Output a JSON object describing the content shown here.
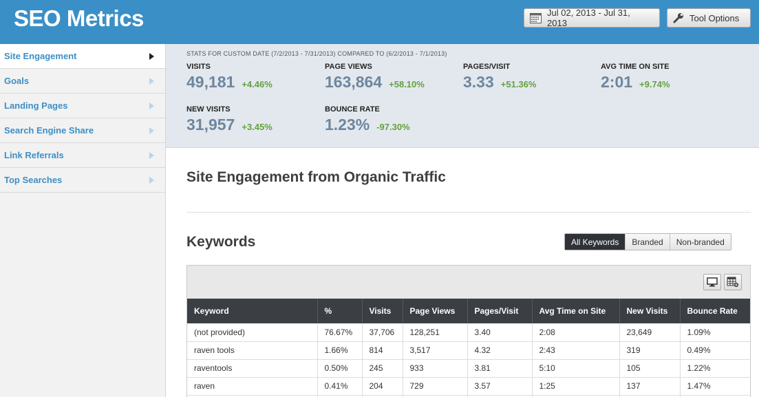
{
  "header": {
    "title": "SEO Metrics",
    "date_range": "Jul 02, 2013 - Jul 31, 2013",
    "tool_options": "Tool Options"
  },
  "sidebar": {
    "items": [
      {
        "label": "Site Engagement"
      },
      {
        "label": "Goals"
      },
      {
        "label": "Landing Pages"
      },
      {
        "label": "Search Engine Share"
      },
      {
        "label": "Link Referrals"
      },
      {
        "label": "Top Searches"
      }
    ]
  },
  "stats": {
    "caption": "STATS FOR CUSTOM DATE (7/2/2013 - 7/31/2013) COMPARED TO (6/2/2013 - 7/1/2013)",
    "visits": {
      "label": "VISITS",
      "value": "49,181",
      "change": "+4.46%"
    },
    "page_views": {
      "label": "PAGE VIEWS",
      "value": "163,864",
      "change": "+58.10%"
    },
    "pages_visit": {
      "label": "PAGES/VISIT",
      "value": "3.33",
      "change": "+51.36%"
    },
    "avg_time": {
      "label": "AVG TIME ON SITE",
      "value": "2:01",
      "change": "+9.74%"
    },
    "new_visits": {
      "label": "NEW VISITS",
      "value": "31,957",
      "change": "+3.45%"
    },
    "bounce_rate": {
      "label": "BOUNCE RATE",
      "value": "1.23%",
      "change": "-97.30%"
    }
  },
  "main": {
    "section_title": "Site Engagement from Organic Traffic",
    "keywords_title": "Keywords",
    "filters": [
      "All Keywords",
      "Branded",
      "Non-branded"
    ],
    "selected_filter": "All Keywords"
  },
  "table": {
    "columns": [
      "Keyword",
      "%",
      "Visits",
      "Page Views",
      "Pages/Visit",
      "Avg Time on Site",
      "New Visits",
      "Bounce Rate"
    ],
    "rows": [
      [
        "(not provided)",
        "76.67%",
        "37,706",
        "128,251",
        "3.40",
        "2:08",
        "23,649",
        "1.09%"
      ],
      [
        "raven tools",
        "1.66%",
        "814",
        "3,517",
        "4.32",
        "2:43",
        "319",
        "0.49%"
      ],
      [
        "raventools",
        "0.50%",
        "245",
        "933",
        "3.81",
        "5:10",
        "105",
        "1.22%"
      ],
      [
        "raven",
        "0.41%",
        "204",
        "729",
        "3.57",
        "1:25",
        "137",
        "1.47%"
      ]
    ]
  }
}
